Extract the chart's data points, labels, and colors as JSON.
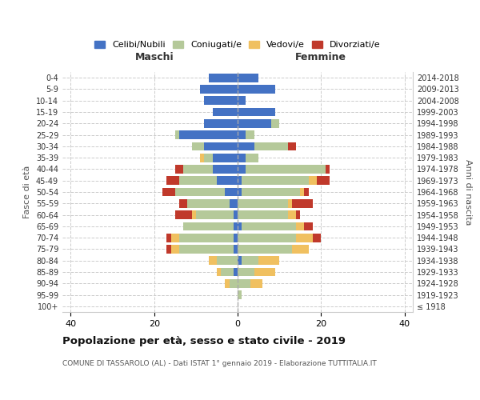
{
  "age_groups": [
    "100+",
    "95-99",
    "90-94",
    "85-89",
    "80-84",
    "75-79",
    "70-74",
    "65-69",
    "60-64",
    "55-59",
    "50-54",
    "45-49",
    "40-44",
    "35-39",
    "30-34",
    "25-29",
    "20-24",
    "15-19",
    "10-14",
    "5-9",
    "0-4"
  ],
  "birth_years": [
    "≤ 1918",
    "1919-1923",
    "1924-1928",
    "1929-1933",
    "1934-1938",
    "1939-1943",
    "1944-1948",
    "1949-1953",
    "1954-1958",
    "1959-1963",
    "1964-1968",
    "1969-1973",
    "1974-1978",
    "1979-1983",
    "1984-1988",
    "1989-1993",
    "1994-1998",
    "1999-2003",
    "2004-2008",
    "2009-2013",
    "2014-2018"
  ],
  "males": {
    "celibe": [
      0,
      0,
      0,
      1,
      0,
      1,
      1,
      1,
      1,
      2,
      3,
      5,
      6,
      6,
      8,
      14,
      8,
      6,
      8,
      9,
      7
    ],
    "coniugato": [
      0,
      0,
      2,
      3,
      5,
      13,
      13,
      12,
      9,
      10,
      12,
      9,
      7,
      2,
      3,
      1,
      0,
      0,
      0,
      0,
      0
    ],
    "vedovo": [
      0,
      0,
      1,
      1,
      2,
      2,
      2,
      0,
      1,
      0,
      0,
      0,
      0,
      1,
      0,
      0,
      0,
      0,
      0,
      0,
      0
    ],
    "divorziato": [
      0,
      0,
      0,
      0,
      0,
      1,
      1,
      0,
      4,
      2,
      3,
      3,
      2,
      0,
      0,
      0,
      0,
      0,
      0,
      0,
      0
    ]
  },
  "females": {
    "nubile": [
      0,
      0,
      0,
      0,
      1,
      0,
      0,
      1,
      0,
      0,
      1,
      1,
      2,
      2,
      4,
      2,
      8,
      9,
      2,
      9,
      5
    ],
    "coniugata": [
      0,
      1,
      3,
      4,
      4,
      13,
      14,
      13,
      12,
      12,
      14,
      16,
      19,
      3,
      8,
      2,
      2,
      0,
      0,
      0,
      0
    ],
    "vedova": [
      0,
      0,
      3,
      5,
      5,
      4,
      4,
      2,
      2,
      1,
      1,
      2,
      0,
      0,
      0,
      0,
      0,
      0,
      0,
      0,
      0
    ],
    "divorziata": [
      0,
      0,
      0,
      0,
      0,
      0,
      2,
      2,
      1,
      5,
      1,
      3,
      1,
      0,
      2,
      0,
      0,
      0,
      0,
      0,
      0
    ]
  },
  "colors": {
    "celibe_nubile": "#4472c4",
    "coniugato": "#b5c99a",
    "vedovo": "#f0c060",
    "divorziato": "#c0392b"
  },
  "xlim": [
    -42,
    42
  ],
  "xticks": [
    -40,
    -20,
    0,
    20,
    40
  ],
  "xticklabels": [
    "40",
    "20",
    "0",
    "20",
    "40"
  ],
  "title": "Popolazione per età, sesso e stato civile - 2019",
  "subtitle": "COMUNE DI TASSAROLO (AL) - Dati ISTAT 1° gennaio 2019 - Elaborazione TUTTITALIA.IT",
  "ylabel": "Fasce di età",
  "right_ylabel": "Anni di nascita",
  "maschi_label": "Maschi",
  "femmine_label": "Femmine",
  "legend_labels": [
    "Celibi/Nubili",
    "Coniugati/e",
    "Vedovi/e",
    "Divorziati/e"
  ],
  "background_color": "#ffffff",
  "bar_height": 0.75
}
